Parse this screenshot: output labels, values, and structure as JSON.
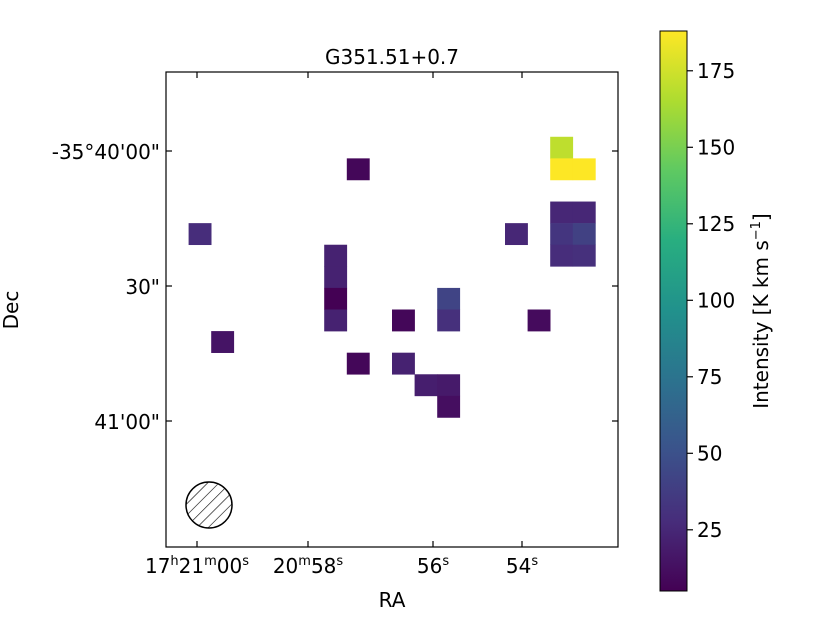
{
  "chart_data": {
    "type": "heatmap",
    "title": "G351.51+0.7",
    "xlabel": "RA",
    "ylabel": "Dec",
    "x_ticks": [
      "17h21m00s",
      "20m58s",
      "56s",
      "54s"
    ],
    "y_ticks": [
      "-35°40'00\"",
      "30\"",
      "41'00\""
    ],
    "colorbar": {
      "label": "Intensity [K km s-1]",
      "min": 5,
      "max": 188,
      "ticks": [
        25,
        50,
        75,
        100,
        125,
        150,
        175
      ],
      "colormap": "viridis"
    },
    "beam": "hatched-circle",
    "pixel_grid": {
      "columns": 20,
      "rows": 22
    },
    "pixels": [
      {
        "col": 17,
        "row": 3,
        "value": 170
      },
      {
        "col": 17,
        "row": 4,
        "value": 188
      },
      {
        "col": 18,
        "row": 4,
        "value": 188
      },
      {
        "col": 8,
        "row": 4,
        "value": 8
      },
      {
        "col": 17,
        "row": 6,
        "value": 25
      },
      {
        "col": 18,
        "row": 6,
        "value": 25
      },
      {
        "col": 17,
        "row": 7,
        "value": 33
      },
      {
        "col": 18,
        "row": 7,
        "value": 40
      },
      {
        "col": 17,
        "row": 8,
        "value": 28
      },
      {
        "col": 18,
        "row": 8,
        "value": 30
      },
      {
        "col": 1,
        "row": 7,
        "value": 28
      },
      {
        "col": 15,
        "row": 7,
        "value": 25
      },
      {
        "col": 7,
        "row": 8,
        "value": 22
      },
      {
        "col": 7,
        "row": 9,
        "value": 22
      },
      {
        "col": 7,
        "row": 10,
        "value": 5
      },
      {
        "col": 7,
        "row": 11,
        "value": 22
      },
      {
        "col": 12,
        "row": 10,
        "value": 42
      },
      {
        "col": 12,
        "row": 11,
        "value": 30
      },
      {
        "col": 10,
        "row": 11,
        "value": 8
      },
      {
        "col": 16,
        "row": 11,
        "value": 10
      },
      {
        "col": 2,
        "row": 12,
        "value": 15
      },
      {
        "col": 8,
        "row": 13,
        "value": 8
      },
      {
        "col": 10,
        "row": 13,
        "value": 22
      },
      {
        "col": 11,
        "row": 14,
        "value": 20
      },
      {
        "col": 12,
        "row": 14,
        "value": 18
      },
      {
        "col": 12,
        "row": 15,
        "value": 12
      }
    ]
  }
}
